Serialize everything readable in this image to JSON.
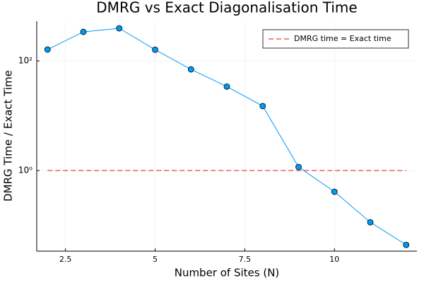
{
  "chart_data": {
    "type": "line",
    "title": "DMRG vs Exact Diagonalisation Time",
    "xlabel": "Number of Sites (N)",
    "ylabel": "DMRG Time / Exact Time",
    "x": [
      2,
      3,
      4,
      5,
      6,
      7,
      8,
      9,
      10,
      11,
      12
    ],
    "series": [
      {
        "color": "#009af9",
        "values": [
          161,
          338,
          393,
          160,
          70,
          34,
          15,
          1.16,
          0.41,
          0.114,
          0.044
        ]
      }
    ],
    "reference_line": {
      "name": "DMRG time = Exact time",
      "value": 1,
      "color": "#e8413b"
    },
    "xlim": [
      1.7,
      12.3
    ],
    "ylim": [
      0.0338,
      529
    ],
    "xticks": [
      2.5,
      5.0,
      7.5,
      10.0
    ],
    "yticks": [
      {
        "value": 1,
        "label": "10⁰"
      },
      {
        "value": 100,
        "label": "10²"
      }
    ],
    "ylog": true,
    "grid": true,
    "legend": "top-right"
  }
}
